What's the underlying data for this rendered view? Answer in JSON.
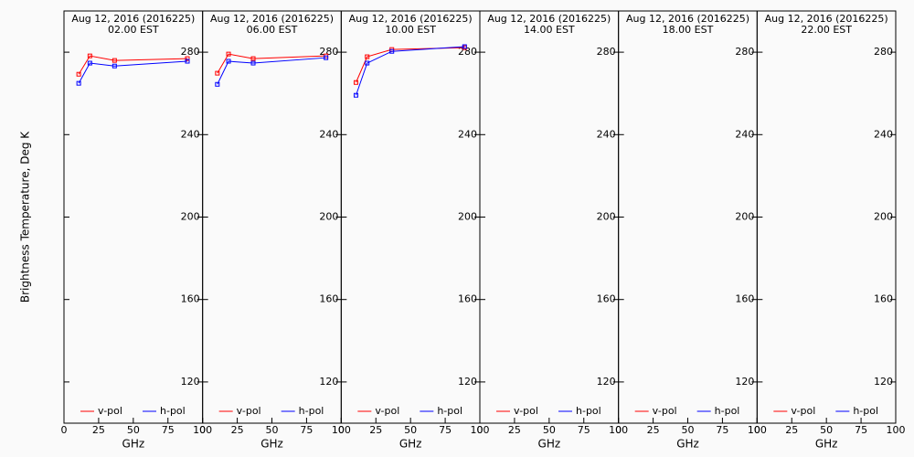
{
  "chart_data": [
    {
      "type": "line",
      "title": "Aug 12, 2016 (2016225)",
      "subtitle": "02.00 EST",
      "ylabel": "Brightness Temperature, Deg K",
      "xlabel": "GHz",
      "x": [
        10.65,
        18.7,
        36.5,
        89.0
      ],
      "series": [
        {
          "name": "v-pol",
          "color": "#ff0000",
          "values": [
            269.3,
            278.2,
            276.0,
            276.9
          ]
        },
        {
          "name": "h-pol",
          "color": "#0000ff",
          "values": [
            264.9,
            274.7,
            273.3,
            275.6
          ]
        }
      ],
      "xlim": [
        0,
        100
      ],
      "xticks": [
        0,
        25,
        50,
        75,
        100
      ],
      "ylim": [
        100,
        300
      ],
      "yticks": [
        120,
        160,
        200,
        240,
        280
      ],
      "legend": "lower center"
    },
    {
      "type": "line",
      "title": "Aug 12, 2016 (2016225)",
      "subtitle": "06.00 EST",
      "xlabel": "GHz",
      "x": [
        10.65,
        18.7,
        36.5,
        89.0
      ],
      "series": [
        {
          "name": "v-pol",
          "color": "#ff0000",
          "values": [
            269.8,
            279.1,
            276.9,
            278.2
          ]
        },
        {
          "name": "h-pol",
          "color": "#0000ff",
          "values": [
            264.4,
            275.6,
            274.7,
            277.3
          ]
        }
      ],
      "xlim": [
        0,
        100
      ],
      "xticks": [
        0,
        25,
        50,
        75,
        100
      ],
      "ylim": [
        100,
        300
      ],
      "yticks": [
        120,
        160,
        200,
        240,
        280
      ],
      "legend": "lower center"
    },
    {
      "type": "line",
      "title": "Aug 12, 2016 (2016225)",
      "subtitle": "10.00 EST",
      "xlabel": "GHz",
      "x": [
        10.65,
        18.7,
        36.5,
        89.0
      ],
      "series": [
        {
          "name": "v-pol",
          "color": "#ff0000",
          "values": [
            265.3,
            277.8,
            281.3,
            282.2
          ]
        },
        {
          "name": "h-pol",
          "color": "#0000ff",
          "values": [
            259.1,
            274.7,
            280.4,
            282.7
          ]
        }
      ],
      "xlim": [
        0,
        100
      ],
      "xticks": [
        0,
        25,
        50,
        75,
        100
      ],
      "ylim": [
        100,
        300
      ],
      "yticks": [
        120,
        160,
        200,
        240,
        280
      ],
      "legend": "lower center"
    },
    {
      "type": "line",
      "title": "Aug 12, 2016 (2016225)",
      "subtitle": "14.00 EST",
      "xlabel": "GHz",
      "x": [
        10.65,
        18.7,
        36.5,
        89.0
      ],
      "series": [
        {
          "name": "v-pol",
          "color": "#ff0000",
          "values": [
            null,
            null,
            null,
            null
          ]
        },
        {
          "name": "h-pol",
          "color": "#0000ff",
          "values": [
            null,
            null,
            null,
            null
          ]
        }
      ],
      "xlim": [
        0,
        100
      ],
      "xticks": [
        0,
        25,
        50,
        75,
        100
      ],
      "ylim": [
        100,
        300
      ],
      "yticks": [
        120,
        160,
        200,
        240,
        280
      ],
      "legend": "lower center"
    },
    {
      "type": "line",
      "title": "Aug 12, 2016 (2016225)",
      "subtitle": "18.00 EST",
      "xlabel": "GHz",
      "x": [
        10.65,
        18.7,
        36.5,
        89.0
      ],
      "series": [
        {
          "name": "v-pol",
          "color": "#ff0000",
          "values": [
            null,
            null,
            null,
            null
          ]
        },
        {
          "name": "h-pol",
          "color": "#0000ff",
          "values": [
            null,
            null,
            null,
            null
          ]
        }
      ],
      "xlim": [
        0,
        100
      ],
      "xticks": [
        0,
        25,
        50,
        75,
        100
      ],
      "ylim": [
        100,
        300
      ],
      "yticks": [
        120,
        160,
        200,
        240,
        280
      ],
      "legend": "lower center"
    },
    {
      "type": "line",
      "title": "Aug 12, 2016 (2016225)",
      "subtitle": "22.00 EST",
      "xlabel": "GHz",
      "x": [
        10.65,
        18.7,
        36.5,
        89.0
      ],
      "series": [
        {
          "name": "v-pol",
          "color": "#ff0000",
          "values": [
            null,
            null,
            null,
            null
          ]
        },
        {
          "name": "h-pol",
          "color": "#0000ff",
          "values": [
            null,
            null,
            null,
            null
          ]
        }
      ],
      "xlim": [
        0,
        100
      ],
      "xticks": [
        0,
        25,
        50,
        75,
        100
      ],
      "ylim": [
        100,
        300
      ],
      "yticks": [
        120,
        160,
        200,
        240,
        280
      ],
      "legend": "lower center"
    }
  ]
}
